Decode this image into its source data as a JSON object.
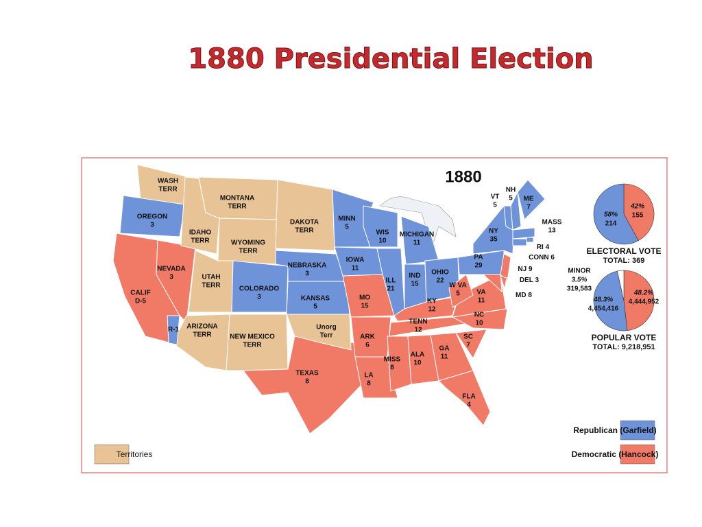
{
  "title": "1880 Presidential Election",
  "map": {
    "year": "1880",
    "legend": [
      {
        "label": "Republican (Garfield)",
        "color": "#6f93d9"
      },
      {
        "label": "Democratic (Hancock)",
        "color": "#f07a66"
      },
      {
        "label": "Territories",
        "color": "#e8c396"
      }
    ],
    "regions": [
      {
        "name": "WASH",
        "sub": "TERR",
        "legend": 2
      },
      {
        "name": "OREGON",
        "votes": 3,
        "legend": 0
      },
      {
        "name": "CALIF",
        "sub": "D-5",
        "legend": 1
      },
      {
        "name": "NEVADA",
        "votes": 3,
        "legend": 1
      },
      {
        "name": "IDAHO",
        "sub": "TERR",
        "legend": 2
      },
      {
        "name": "MONTANA",
        "sub": "TERR",
        "legend": 2
      },
      {
        "name": "WYOMING",
        "sub": "TERR",
        "legend": 2
      },
      {
        "name": "UTAH",
        "sub": "TERR",
        "legend": 2
      },
      {
        "name": "ARIZONA",
        "sub": "TERR",
        "legend": 2
      },
      {
        "name": "COLORADO",
        "votes": 3,
        "legend": 0
      },
      {
        "name": "NEW MEXICO",
        "sub": "TERR",
        "legend": 2
      },
      {
        "name": "DAKOTA",
        "sub": "TERR",
        "legend": 2
      },
      {
        "name": "NEBRASKA",
        "votes": 3,
        "legend": 0
      },
      {
        "name": "KANSAS",
        "votes": 5,
        "legend": 0
      },
      {
        "name": "TEXAS",
        "votes": 8,
        "legend": 1
      },
      {
        "name": "Unorg",
        "sub": "Terr",
        "legend": 2
      },
      {
        "name": "MINN",
        "votes": 5,
        "legend": 0
      },
      {
        "name": "IOWA",
        "votes": 11,
        "legend": 0
      },
      {
        "name": "MO",
        "votes": 15,
        "legend": 1
      },
      {
        "name": "ARK",
        "votes": 6,
        "legend": 1
      },
      {
        "name": "LA",
        "votes": 8,
        "legend": 1
      },
      {
        "name": "WIS",
        "votes": 10,
        "legend": 0
      },
      {
        "name": "ILL",
        "votes": 21,
        "legend": 0
      },
      {
        "name": "MICHIGAN",
        "votes": 11,
        "legend": 0
      },
      {
        "name": "IND",
        "votes": 15,
        "legend": 0
      },
      {
        "name": "OHIO",
        "votes": 22,
        "legend": 0
      },
      {
        "name": "KY",
        "votes": 12,
        "legend": 1
      },
      {
        "name": "TENN",
        "votes": 12,
        "legend": 1
      },
      {
        "name": "MISS",
        "votes": 8,
        "legend": 1
      },
      {
        "name": "ALA",
        "votes": 10,
        "legend": 1
      },
      {
        "name": "GA",
        "votes": 11,
        "legend": 1
      },
      {
        "name": "FLA",
        "votes": 4,
        "legend": 1
      },
      {
        "name": "SC",
        "votes": 7,
        "legend": 1
      },
      {
        "name": "NC",
        "votes": 10,
        "legend": 1
      },
      {
        "name": "VA",
        "votes": 11,
        "legend": 1
      },
      {
        "name": "W VA",
        "votes": 5,
        "legend": 1
      },
      {
        "name": "PA",
        "votes": 29,
        "legend": 0
      },
      {
        "name": "NJ",
        "votes": 9,
        "legend": 1
      },
      {
        "name": "DEL",
        "votes": 3,
        "legend": 1
      },
      {
        "name": "MD",
        "votes": 8,
        "legend": 1
      },
      {
        "name": "NY",
        "votes": 35,
        "legend": 0
      },
      {
        "name": "VT",
        "votes": 5,
        "legend": 0
      },
      {
        "name": "NH",
        "votes": 5,
        "legend": 0
      },
      {
        "name": "ME",
        "votes": 7,
        "legend": 0
      },
      {
        "name": "MASS",
        "votes": 13,
        "legend": 0
      },
      {
        "name": "RI",
        "votes": 4,
        "legend": 0
      },
      {
        "name": "CONN",
        "votes": 6,
        "legend": 0
      },
      {
        "name": "R-1",
        "legend": 0
      }
    ],
    "electoral_vote": {
      "title": "ELECTORAL VOTE",
      "total_label": "TOTAL:",
      "total": 369,
      "slices": [
        {
          "legend": 0,
          "percent": {
            "value": 58,
            "label": "58%"
          },
          "votes": 214
        },
        {
          "legend": 1,
          "percent": {
            "value": 42,
            "label": "42%"
          },
          "votes": 155
        }
      ]
    },
    "popular_vote": {
      "title": "POPULAR VOTE",
      "total_label": "TOTAL:",
      "total": {
        "value": 9218951,
        "label": "9,218,951"
      },
      "slices": [
        {
          "name": "MINOR",
          "color": "#ffffff",
          "percent": {
            "value": 3.5,
            "label": "3.5%"
          },
          "votes": {
            "value": 319583,
            "label": "319,583"
          }
        },
        {
          "legend": 0,
          "percent": {
            "value": 48.3,
            "label": "48.3%"
          },
          "votes": {
            "value": 4454416,
            "label": "4,454,416"
          }
        },
        {
          "legend": 1,
          "percent": {
            "value": 48.2,
            "label": "48.2%"
          },
          "votes": {
            "value": 4444952,
            "label": "4,444,952"
          }
        }
      ]
    }
  }
}
